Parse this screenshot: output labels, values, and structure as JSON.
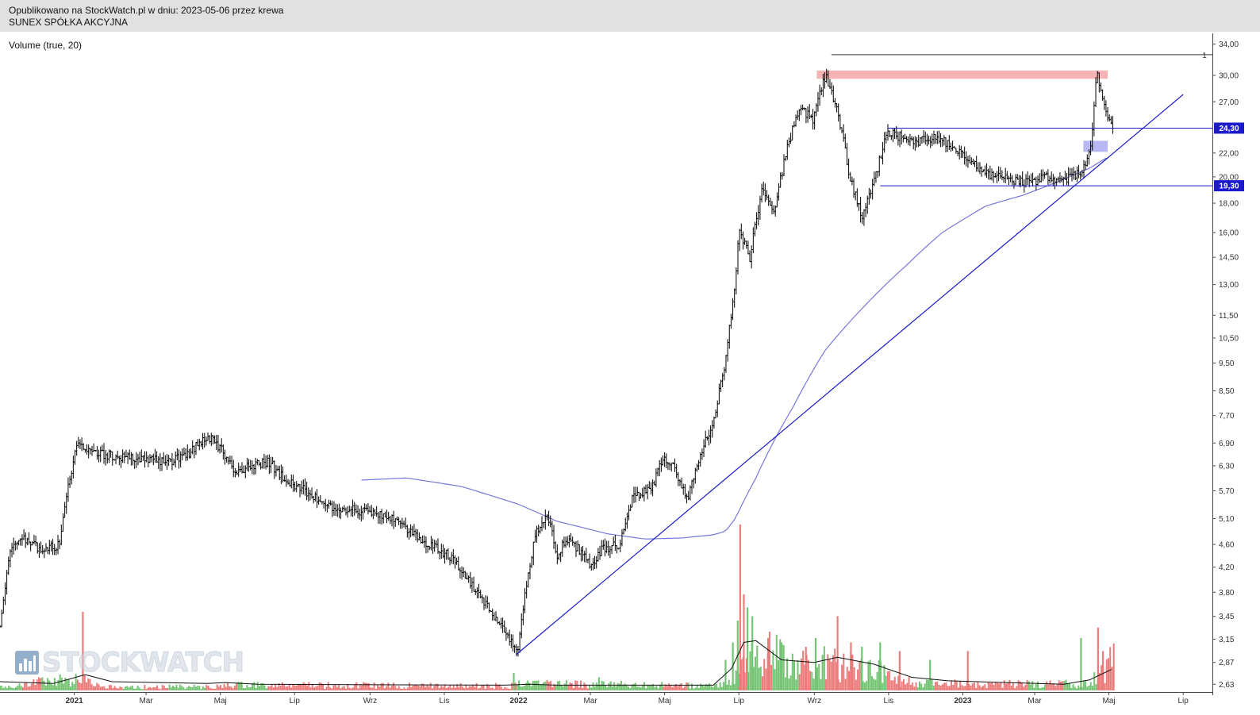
{
  "header": {
    "published": "Opublikowano na StockWatch.pl w dniu: 2023-05-06 przez krewa",
    "company": "SUNEX SPÓŁKA AKCYJNA"
  },
  "indicator_label": "Volume (true, 20)",
  "watermark": {
    "text": "STOCKWATCH",
    "icon": "bar-chart-icon"
  },
  "colors": {
    "price": "#000000",
    "trendline": "#1a1acc",
    "moving_average": "#7777dd",
    "volume_up": "#74c474",
    "volume_down": "#ec7b7b",
    "resistance_zone": "#f8b4b4",
    "support_zone": "#b8b8f4",
    "badge": "#1a1acc"
  },
  "chart_data": {
    "type": "line",
    "scale": "log",
    "ylim": [
      2.55,
      35.5
    ],
    "x_range": [
      "2020-11-01",
      "2023-07-25"
    ],
    "x_ticks": [
      {
        "label": "2021",
        "date": "2021-01-01",
        "bold": true
      },
      {
        "label": "Mar",
        "date": "2021-03-01"
      },
      {
        "label": "Maj",
        "date": "2021-05-01"
      },
      {
        "label": "Lip",
        "date": "2021-07-01"
      },
      {
        "label": "Wrz",
        "date": "2021-09-01"
      },
      {
        "label": "Lis",
        "date": "2021-11-01"
      },
      {
        "label": "2022",
        "date": "2022-01-01",
        "bold": true
      },
      {
        "label": "Mar",
        "date": "2022-03-01"
      },
      {
        "label": "Maj",
        "date": "2022-05-01"
      },
      {
        "label": "Lip",
        "date": "2022-07-01"
      },
      {
        "label": "Wrz",
        "date": "2022-09-01"
      },
      {
        "label": "Lis",
        "date": "2022-11-01"
      },
      {
        "label": "2023",
        "date": "2023-01-01",
        "bold": true
      },
      {
        "label": "Mar",
        "date": "2023-03-01"
      },
      {
        "label": "Maj",
        "date": "2023-05-01"
      },
      {
        "label": "Lip",
        "date": "2023-07-01"
      }
    ],
    "y_ticks": [
      "2,63",
      "2,87",
      "3,15",
      "3,45",
      "3,80",
      "4,20",
      "4,60",
      "5,10",
      "5,70",
      "6,30",
      "6,90",
      "7,70",
      "8,50",
      "9,50",
      "10,50",
      "11,50",
      "13,00",
      "14,50",
      "16,00",
      "18,00",
      "20,00",
      "22,00",
      "27,00",
      "30,00",
      "34,00"
    ],
    "price_series": {
      "name": "SUNEX",
      "x": [
        "2020-11-01",
        "2020-11-10",
        "2020-11-20",
        "2020-12-05",
        "2020-12-20",
        "2021-01-03",
        "2021-01-10",
        "2021-01-25",
        "2021-02-10",
        "2021-03-01",
        "2021-03-20",
        "2021-04-05",
        "2021-04-20",
        "2021-04-30",
        "2021-05-15",
        "2021-05-25",
        "2021-06-10",
        "2021-06-25",
        "2021-07-10",
        "2021-07-25",
        "2021-08-10",
        "2021-08-25",
        "2021-09-10",
        "2021-09-25",
        "2021-10-05",
        "2021-10-20",
        "2021-11-05",
        "2021-11-20",
        "2021-12-01",
        "2021-12-10",
        "2021-12-20",
        "2021-12-31",
        "2022-01-05",
        "2022-01-15",
        "2022-01-25",
        "2022-02-01",
        "2022-02-10",
        "2022-02-20",
        "2022-03-01",
        "2022-03-10",
        "2022-03-25",
        "2022-04-05",
        "2022-04-20",
        "2022-04-30",
        "2022-05-10",
        "2022-05-20",
        "2022-06-01",
        "2022-06-10",
        "2022-06-20",
        "2022-06-28",
        "2022-07-01",
        "2022-07-10",
        "2022-07-20",
        "2022-07-30",
        "2022-08-10",
        "2022-08-20",
        "2022-08-31",
        "2022-09-10",
        "2022-09-20",
        "2022-09-30",
        "2022-10-10",
        "2022-10-20",
        "2022-10-31",
        "2022-11-10",
        "2022-11-25",
        "2022-12-10",
        "2022-12-25",
        "2023-01-10",
        "2023-01-25",
        "2023-02-10",
        "2023-02-25",
        "2023-03-10",
        "2023-03-25",
        "2023-04-10",
        "2023-04-17",
        "2023-04-21",
        "2023-04-24",
        "2023-04-27",
        "2023-05-02",
        "2023-05-05"
      ],
      "values": [
        3.3,
        4.6,
        4.7,
        4.5,
        4.6,
        6.9,
        6.7,
        6.6,
        6.5,
        6.5,
        6.4,
        6.6,
        7.1,
        6.8,
        6.1,
        6.3,
        6.4,
        5.9,
        5.7,
        5.4,
        5.3,
        5.25,
        5.2,
        5.0,
        4.8,
        4.6,
        4.4,
        4.0,
        3.7,
        3.5,
        3.3,
        2.95,
        3.6,
        4.8,
        5.2,
        4.4,
        4.7,
        4.5,
        4.2,
        4.5,
        4.6,
        5.6,
        5.7,
        6.5,
        6.2,
        5.5,
        6.7,
        7.5,
        9.5,
        13.0,
        16.0,
        14.5,
        19.0,
        17.5,
        22.5,
        26.5,
        25.0,
        30.0,
        26.0,
        20.0,
        17.0,
        19.5,
        24.0,
        23.5,
        23.0,
        23.5,
        22.5,
        21.0,
        20.0,
        19.8,
        19.5,
        20.0,
        19.7,
        20.5,
        23.0,
        30.5,
        28.5,
        26.5,
        25.0,
        24.3
      ]
    },
    "volume_series": {
      "name": "Volume (true, 20)",
      "profile_dates": [
        "2020-11-01",
        "2021-01-05",
        "2021-01-25",
        "2021-04-25",
        "2021-05-10",
        "2021-12-25",
        "2022-01-05",
        "2022-06-15",
        "2022-06-28",
        "2022-07-20",
        "2022-08-20",
        "2022-09-20",
        "2022-10-15",
        "2022-11-15",
        "2022-12-15",
        "2023-04-15",
        "2023-05-05"
      ],
      "profile_values": [
        0.04,
        0.15,
        0.04,
        0.04,
        0.06,
        0.05,
        0.08,
        0.05,
        0.2,
        0.45,
        0.3,
        0.3,
        0.25,
        0.1,
        0.08,
        0.07,
        0.35
      ],
      "spikes": [
        {
          "x": "2021-01-08",
          "v": 0.9
        },
        {
          "x": "2021-12-28",
          "v": 0.2
        },
        {
          "x": "2022-03-08",
          "v": 0.15
        },
        {
          "x": "2022-06-20",
          "v": 0.35
        },
        {
          "x": "2022-06-26",
          "v": 0.55
        },
        {
          "x": "2022-06-30",
          "v": 0.8
        },
        {
          "x": "2022-07-02",
          "v": 1.9
        },
        {
          "x": "2022-07-05",
          "v": 1.1
        },
        {
          "x": "2022-07-08",
          "v": 0.95
        },
        {
          "x": "2022-07-12",
          "v": 0.85
        },
        {
          "x": "2022-07-25",
          "v": 0.6
        },
        {
          "x": "2022-08-05",
          "v": 0.55
        },
        {
          "x": "2022-08-25",
          "v": 0.5
        },
        {
          "x": "2022-09-02",
          "v": 0.6
        },
        {
          "x": "2022-09-20",
          "v": 0.85
        },
        {
          "x": "2022-10-01",
          "v": 0.55
        },
        {
          "x": "2022-10-10",
          "v": 0.5
        },
        {
          "x": "2022-10-25",
          "v": 0.55
        },
        {
          "x": "2022-11-10",
          "v": 0.45
        },
        {
          "x": "2022-12-05",
          "v": 0.35
        },
        {
          "x": "2023-01-05",
          "v": 0.45
        },
        {
          "x": "2023-04-08",
          "v": 0.6
        },
        {
          "x": "2023-04-22",
          "v": 0.72
        },
        {
          "x": "2023-04-26",
          "v": 0.45
        }
      ],
      "ma": {
        "x": [
          "2020-11-01",
          "2020-12-15",
          "2021-01-10",
          "2021-02-01",
          "2021-04-20",
          "2021-05-05",
          "2021-06-01",
          "2021-12-20",
          "2022-01-10",
          "2022-02-01",
          "2022-06-10",
          "2022-06-25",
          "2022-07-05",
          "2022-07-15",
          "2022-08-05",
          "2022-09-01",
          "2022-09-20",
          "2022-10-20",
          "2022-11-20",
          "2022-12-20",
          "2023-03-25",
          "2023-04-15",
          "2023-05-03"
        ],
        "values": [
          0.1,
          0.08,
          0.18,
          0.1,
          0.08,
          0.09,
          0.07,
          0.06,
          0.07,
          0.06,
          0.06,
          0.25,
          0.55,
          0.57,
          0.35,
          0.32,
          0.38,
          0.3,
          0.15,
          0.11,
          0.07,
          0.12,
          0.24
        ]
      }
    },
    "moving_average_line": {
      "x": [
        "2021-08-25",
        "2021-10-01",
        "2021-11-15",
        "2022-01-01",
        "2022-02-01",
        "2022-03-15",
        "2022-04-15",
        "2022-05-15",
        "2022-06-10",
        "2022-06-20",
        "2022-06-28",
        "2022-07-15",
        "2022-08-15",
        "2022-09-10",
        "2022-10-10",
        "2022-11-15",
        "2022-12-15",
        "2023-01-20",
        "2023-02-20",
        "2023-03-20",
        "2023-04-15",
        "2023-05-01"
      ],
      "values": [
        5.95,
        6.0,
        5.8,
        5.4,
        5.05,
        4.8,
        4.7,
        4.72,
        4.78,
        4.85,
        5.1,
        6.0,
        8.0,
        10.0,
        11.8,
        14.0,
        16.0,
        17.8,
        18.6,
        19.6,
        20.7,
        21.7
      ]
    },
    "trendline": {
      "x": [
        "2021-12-30",
        "2023-07-01"
      ],
      "values": [
        2.96,
        27.8
      ]
    },
    "horizontal_lines": [
      {
        "value": 24.3,
        "x_start": "2022-10-31",
        "label": "24,30"
      },
      {
        "value": 19.3,
        "x_start": "2022-10-25",
        "label": "19,30"
      }
    ],
    "marker_line": {
      "value": 32.6,
      "x_start": "2022-09-15",
      "label": "1"
    },
    "zones": [
      {
        "kind": "resistance",
        "x_start": "2022-09-03",
        "x_end": "2023-04-30",
        "y_low": 29.6,
        "y_high": 30.6
      },
      {
        "kind": "support",
        "x_start": "2023-04-10",
        "x_end": "2023-04-30",
        "y_low": 22.1,
        "y_high": 23.1
      }
    ]
  }
}
